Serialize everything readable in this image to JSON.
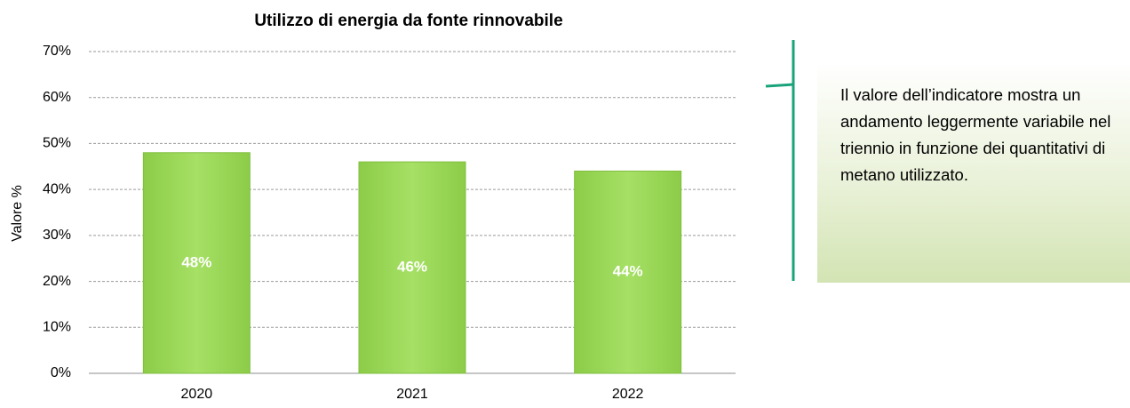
{
  "chart_data": {
    "type": "bar",
    "title": "Utilizzo di energia da fonte rinnovabile",
    "ylabel": "Valore %",
    "categories": [
      "2020",
      "2021",
      "2022"
    ],
    "values": [
      48,
      46,
      44
    ],
    "value_labels": [
      "48%",
      "46%",
      "44%"
    ],
    "color": "#92d050",
    "ylim": [
      0,
      70
    ],
    "yticks": [
      {
        "value": 0,
        "label": "0%"
      },
      {
        "value": 10,
        "label": "10%"
      },
      {
        "value": 20,
        "label": "20%"
      },
      {
        "value": 30,
        "label": "30%"
      },
      {
        "value": 40,
        "label": "40%"
      },
      {
        "value": 50,
        "label": "50%"
      },
      {
        "value": 60,
        "label": "60%"
      },
      {
        "value": 70,
        "label": "70%"
      }
    ],
    "grid": true,
    "annotation": "Il valore dell’indicatore mostra un andamento leggermente variabile nel triennio in funzione dei quantitativi di metano utilizzato."
  }
}
